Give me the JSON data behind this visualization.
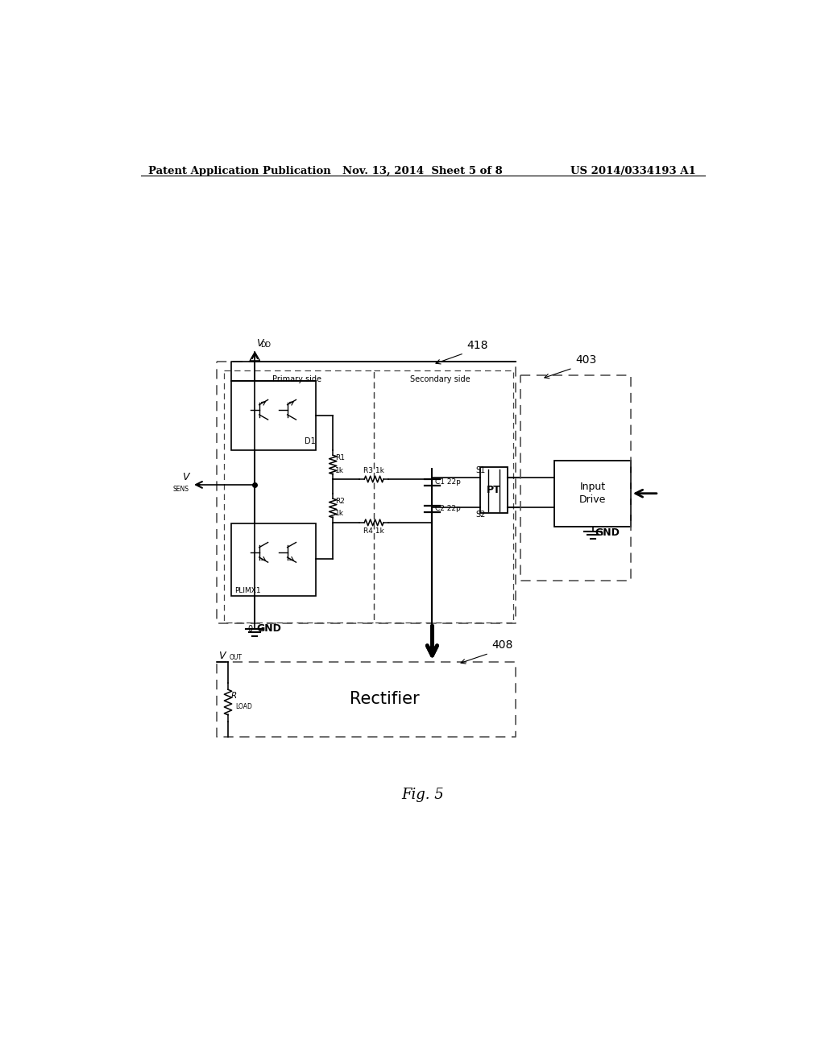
{
  "bg_color": "#ffffff",
  "text_color": "#000000",
  "header_left": "Patent Application Publication",
  "header_mid": "Nov. 13, 2014  Sheet 5 of 8",
  "header_right": "US 2014/0334193 A1",
  "fig_label": "Fig. 5",
  "line_color": "#000000",
  "dash_color": "#444444"
}
